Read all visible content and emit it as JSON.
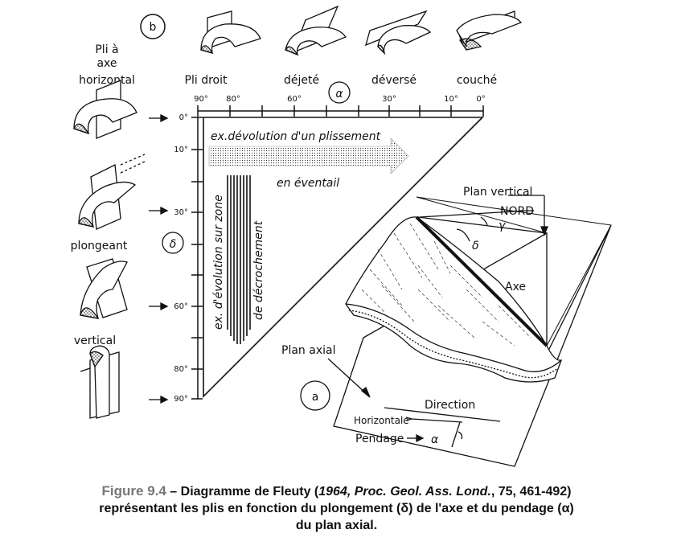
{
  "labels": {
    "b": "b",
    "a": "a",
    "pli_a_axe_1": "Pli à",
    "pli_a_axe_2": "axe",
    "pli_a_axe_3": "horizontal",
    "plongeant": "plongeant",
    "vertical": "vertical",
    "pli_droit": "Pli  droit",
    "dejete": "déjeté",
    "deverse": "déversé",
    "couche": "couché",
    "alpha": "α",
    "delta": "δ",
    "gamma": "γ",
    "top_ticks": [
      "90°",
      "80°",
      "60°",
      "30°",
      "10°",
      "0°"
    ],
    "left_ticks": [
      "0°",
      "10°",
      "30°",
      "60°",
      "80°",
      "90°"
    ],
    "evolution_h_1": "ex.dévolution d'un plissement",
    "evolution_h_2": "en  éventail",
    "evolution_v_1": "ex. d'évolution sur zone",
    "evolution_v_2": "de  décrochement",
    "plan_vertical": "Plan vertical",
    "nord": "NORD",
    "axe": "Axe",
    "plan_axial": "Plan axial",
    "direction": "Direction",
    "horizontale": "Horizontale",
    "pendage": "Pendage"
  },
  "caption": {
    "figure_number": "Figure 9.4",
    "dash": " – ",
    "title_start": "Diagramme de Fleuty (",
    "citation": "1964, Proc. Geol. Ass. Lond.",
    "ref": ", 75, 461-492)",
    "line2": "représentant les plis en fonction du plongement (δ) de l'axe et du pendage (α)",
    "line3": "du plan axial."
  }
}
